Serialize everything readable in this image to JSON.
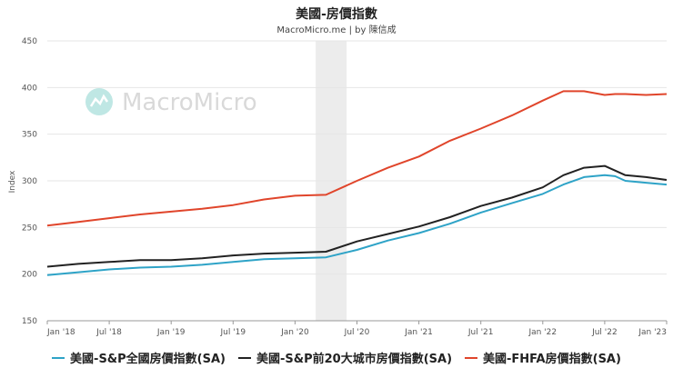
{
  "chart_data": {
    "type": "line",
    "title": "美國-房價指數",
    "subtitle": "MacroMicro.me | by 陳信成",
    "ylabel": "Index",
    "ylim": [
      150,
      450
    ],
    "yticks": [
      150,
      200,
      250,
      300,
      350,
      400,
      450
    ],
    "xticks": [
      "Jan '18",
      "Jul '18",
      "Jan '19",
      "Jul '19",
      "Jan '20",
      "Jul '20",
      "Jan '21",
      "Jul '21",
      "Jan '22",
      "Jul '22",
      "Jan '23"
    ],
    "xrange": [
      0,
      60
    ],
    "shaded_region": [
      26,
      29
    ],
    "watermark": "MacroMicro",
    "series": [
      {
        "name": "美國-S&P全國房價指數(SA)",
        "color": "#2ea3c7",
        "x": [
          0,
          3,
          6,
          9,
          12,
          15,
          18,
          21,
          24,
          27,
          30,
          33,
          36,
          39,
          42,
          45,
          48,
          50,
          52,
          54,
          55,
          56,
          58,
          60
        ],
        "values": [
          199,
          202,
          205,
          207,
          208,
          210,
          213,
          216,
          217,
          218,
          226,
          236,
          244,
          254,
          266,
          276,
          286,
          296,
          304,
          306,
          305,
          300,
          298,
          296
        ]
      },
      {
        "name": "美國-S&P前20大城市房價指數(SA)",
        "color": "#222222",
        "x": [
          0,
          3,
          6,
          9,
          12,
          15,
          18,
          21,
          24,
          27,
          30,
          33,
          36,
          39,
          42,
          45,
          48,
          50,
          52,
          54,
          55,
          56,
          58,
          60
        ],
        "values": [
          208,
          211,
          213,
          215,
          215,
          217,
          220,
          222,
          223,
          224,
          235,
          243,
          251,
          261,
          273,
          282,
          293,
          306,
          314,
          316,
          311,
          306,
          304,
          301
        ]
      },
      {
        "name": "美國-FHFA房價指數(SA)",
        "color": "#e0452b",
        "x": [
          0,
          3,
          6,
          9,
          12,
          15,
          18,
          21,
          24,
          27,
          30,
          33,
          36,
          39,
          42,
          45,
          48,
          50,
          52,
          54,
          55,
          56,
          58,
          60
        ],
        "values": [
          252,
          256,
          260,
          264,
          267,
          270,
          274,
          280,
          284,
          285,
          300,
          314,
          326,
          343,
          356,
          370,
          386,
          396,
          396,
          392,
          393,
          393,
          392,
          393
        ]
      }
    ]
  }
}
